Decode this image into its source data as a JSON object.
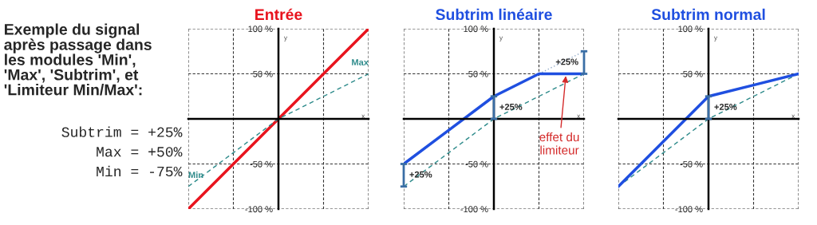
{
  "chart_data": [
    {
      "type": "other",
      "title": "Exemple du signal\naprès passage dans\nles modules 'Min',\n'Max', 'Subtrim', et\n'Limiteur Min/Max':",
      "annotations": [
        "Subtrim = +25%",
        "Max = +50%",
        "Min = -75%"
      ]
    },
    {
      "type": "line",
      "title": "Entrée",
      "xlabel": "x",
      "ylabel": "y",
      "categories": [
        null,
        null,
        null,
        null,
        null
      ],
      "ylim": [
        -100,
        100
      ],
      "yticks": [
        {
          "value": 100,
          "label": "100 %"
        },
        {
          "value": 50,
          "label": "50 %"
        },
        {
          "value": -50,
          "label": "-50 %"
        },
        {
          "value": -100,
          "label": "-100 %"
        }
      ],
      "tick_labels": "y",
      "grid": true,
      "legend": false,
      "series": [
        {
          "color": "#e8141e",
          "values": [
            -100,
            -50,
            0,
            50,
            100
          ],
          "line_style": "solid"
        },
        {
          "color": "#2e8b8b",
          "values": [
            -75,
            -37.5,
            0,
            25,
            50
          ],
          "line_style": "dashed"
        }
      ],
      "annotations": [
        "Min",
        "Max"
      ]
    },
    {
      "type": "line",
      "title": "Subtrim linéaire",
      "xlabel": "x",
      "ylabel": "y",
      "categories": [
        null,
        null,
        null,
        null,
        null
      ],
      "ylim": [
        -100,
        100
      ],
      "yticks": [
        {
          "value": 100,
          "label": "100 %"
        },
        {
          "value": 50,
          "label": "50 %"
        },
        {
          "value": -50,
          "label": "-50 %"
        },
        {
          "value": -100,
          "label": "-100 %"
        }
      ],
      "tick_labels": "y",
      "grid": true,
      "legend": false,
      "series": [
        {
          "color": "#2e8b8b",
          "values": [
            -75,
            -37.5,
            0,
            25,
            50
          ],
          "line_style": "dashed"
        },
        {
          "color": "#8fa8c8",
          "values": [
            null,
            null,
            null,
            50,
            75
          ],
          "line_style": "dotted"
        },
        {
          "color": "#1f4fe0",
          "values": [
            -50,
            -12.5,
            25,
            50,
            50
          ],
          "line_style": "solid",
          "errors": [
            [
              -75,
              -50
            ],
            null,
            [
              0,
              25
            ],
            null,
            [
              50,
              75
            ]
          ]
        }
      ],
      "annotations": [
        "+25%",
        "+25%",
        "+25%",
        "effet du\nlimiteur"
      ]
    },
    {
      "type": "line",
      "title": "Subtrim normal",
      "xlabel": "x",
      "ylabel": "y",
      "categories": [
        null,
        null,
        null,
        null,
        null
      ],
      "ylim": [
        -100,
        100
      ],
      "yticks": [
        {
          "value": 100,
          "label": "100 %"
        },
        {
          "value": 50,
          "label": "50 %"
        },
        {
          "value": -50,
          "label": "-50 %"
        },
        {
          "value": -100,
          "label": "-100 %"
        }
      ],
      "tick_labels": "y",
      "grid": true,
      "legend": false,
      "series": [
        {
          "color": "#2e8b8b",
          "values": [
            -75,
            -37.5,
            0,
            25,
            50
          ],
          "line_style": "dashed"
        },
        {
          "color": "#1f4fe0",
          "values": [
            -75,
            -25,
            25,
            37.5,
            50
          ],
          "line_style": "solid",
          "errors": [
            null,
            null,
            [
              0,
              25
            ],
            null,
            null
          ]
        }
      ],
      "annotations": [
        "+25%"
      ]
    }
  ]
}
